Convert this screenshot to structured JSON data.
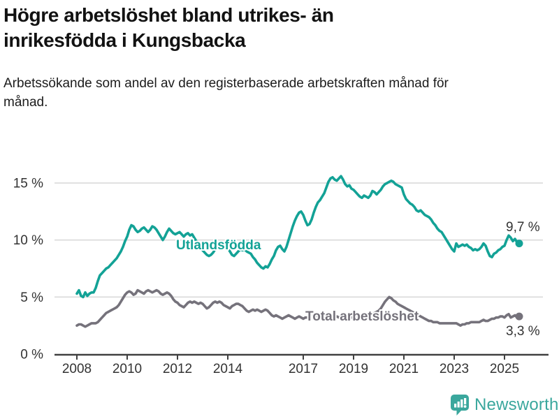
{
  "header": {
    "title": "Högre arbetslöshet bland utrikes- än inrikesfödda i Kungsbacka",
    "subtitle": "Arbetssökande som andel av den registerbaserade arbetskraften månad för månad."
  },
  "chart_data": {
    "type": "line",
    "title": "Högre arbetslöshet bland utrikes- än inrikesfödda i Kungsbacka",
    "x_unit": "month",
    "x_start": "2008-01",
    "x_end": "2025-08",
    "x_tick_years": [
      2008,
      2010,
      2012,
      2014,
      2017,
      2019,
      2021,
      2023,
      2025
    ],
    "x_tick_labels": [
      "2008",
      "2010",
      "2012",
      "2014",
      "2017",
      "2019",
      "2021",
      "2023",
      "2025"
    ],
    "y_ticks": [
      0,
      5,
      10,
      15
    ],
    "y_tick_labels": [
      "0 %",
      "5 %",
      "10 %",
      "15 %"
    ],
    "ylim": [
      0,
      16.5
    ],
    "grid": "horizontal",
    "colors": {
      "grid": "#d4d4d4",
      "axis": "#404040",
      "tick_text": "#333333"
    },
    "series": [
      {
        "name": "Utlandsfödda",
        "color": "#13a296",
        "end_value": 9.7,
        "end_label": "9,7 %",
        "values": [
          5.3,
          5.6,
          5.1,
          5.0,
          5.4,
          5.1,
          5.3,
          5.4,
          5.4,
          5.8,
          6.4,
          6.9,
          7.1,
          7.3,
          7.5,
          7.6,
          7.8,
          8.0,
          8.2,
          8.4,
          8.7,
          9.0,
          9.4,
          9.9,
          10.3,
          10.9,
          11.3,
          11.2,
          10.9,
          10.7,
          10.8,
          11.0,
          11.1,
          10.9,
          10.7,
          10.9,
          11.2,
          11.1,
          10.9,
          10.6,
          10.3,
          10.0,
          10.3,
          10.7,
          11.0,
          10.8,
          10.6,
          10.5,
          10.6,
          10.7,
          10.5,
          10.3,
          10.5,
          10.6,
          10.4,
          10.5,
          10.2,
          9.9,
          9.6,
          9.3,
          9.1,
          8.9,
          8.7,
          8.6,
          8.7,
          8.9,
          9.2,
          9.4,
          9.5,
          9.4,
          9.5,
          9.4,
          9.3,
          9.0,
          8.7,
          8.6,
          8.8,
          9.0,
          9.2,
          9.1,
          9.2,
          9.0,
          8.9,
          8.8,
          8.5,
          8.3,
          8.0,
          7.8,
          7.6,
          7.5,
          7.7,
          7.6,
          7.9,
          8.3,
          8.6,
          9.1,
          9.4,
          9.5,
          9.2,
          9.0,
          9.4,
          10.0,
          10.6,
          11.2,
          11.7,
          12.1,
          12.4,
          12.5,
          12.2,
          11.7,
          11.3,
          11.4,
          11.8,
          12.4,
          12.9,
          13.3,
          13.5,
          13.8,
          14.1,
          14.6,
          15.1,
          15.4,
          15.5,
          15.3,
          15.2,
          15.4,
          15.6,
          15.3,
          14.9,
          14.7,
          14.8,
          14.5,
          14.4,
          14.2,
          14.0,
          13.8,
          13.7,
          13.9,
          13.8,
          13.7,
          13.9,
          14.3,
          14.2,
          14.0,
          14.2,
          14.4,
          14.7,
          14.9,
          15.0,
          15.1,
          15.2,
          15.1,
          14.9,
          14.8,
          14.7,
          14.6,
          14.0,
          13.6,
          13.4,
          13.2,
          13.1,
          12.9,
          12.6,
          12.5,
          12.6,
          12.4,
          12.2,
          12.1,
          12.0,
          11.8,
          11.5,
          11.3,
          11.0,
          10.8,
          10.7,
          10.4,
          10.1,
          9.8,
          9.5,
          9.2,
          9.0,
          9.7,
          9.4,
          9.5,
          9.6,
          9.5,
          9.6,
          9.4,
          9.3,
          9.1,
          9.2,
          9.1,
          9.2,
          9.4,
          9.7,
          9.5,
          9.0,
          8.6,
          8.5,
          8.8,
          8.9,
          9.1,
          9.2,
          9.4,
          9.5,
          10.0,
          10.4,
          10.2,
          9.9,
          10.1,
          9.8,
          9.7
        ]
      },
      {
        "name": "Total arbetslöshet",
        "color": "#75727b",
        "end_value": 3.3,
        "end_label": "3,3 %",
        "values": [
          2.5,
          2.6,
          2.6,
          2.5,
          2.4,
          2.5,
          2.6,
          2.7,
          2.7,
          2.7,
          2.8,
          3.0,
          3.2,
          3.4,
          3.6,
          3.7,
          3.8,
          3.9,
          4.0,
          4.1,
          4.3,
          4.6,
          4.9,
          5.2,
          5.4,
          5.5,
          5.4,
          5.2,
          5.3,
          5.6,
          5.5,
          5.4,
          5.3,
          5.5,
          5.6,
          5.5,
          5.4,
          5.5,
          5.6,
          5.5,
          5.3,
          5.2,
          5.3,
          5.4,
          5.3,
          5.1,
          4.8,
          4.6,
          4.5,
          4.3,
          4.2,
          4.1,
          4.3,
          4.5,
          4.6,
          4.5,
          4.6,
          4.5,
          4.4,
          4.5,
          4.4,
          4.2,
          4.0,
          4.1,
          4.3,
          4.5,
          4.6,
          4.5,
          4.6,
          4.5,
          4.3,
          4.2,
          4.1,
          4.0,
          4.2,
          4.3,
          4.4,
          4.4,
          4.3,
          4.2,
          4.0,
          3.8,
          3.7,
          3.8,
          3.9,
          3.8,
          3.9,
          3.8,
          3.7,
          3.8,
          3.9,
          3.8,
          3.6,
          3.4,
          3.3,
          3.4,
          3.3,
          3.2,
          3.1,
          3.2,
          3.3,
          3.4,
          3.3,
          3.2,
          3.1,
          3.2,
          3.3,
          3.2,
          3.1,
          3.2,
          3.2,
          3.3,
          3.3,
          3.4,
          3.4,
          3.3,
          3.3,
          3.4,
          3.4,
          3.3,
          3.3,
          3.2,
          3.2,
          3.3,
          3.3,
          3.2,
          3.3,
          3.2,
          3.2,
          3.3,
          3.3,
          3.2,
          3.2,
          3.3,
          3.3,
          3.2,
          3.3,
          3.3,
          3.4,
          3.4,
          3.5,
          3.5,
          3.6,
          3.7,
          3.8,
          4.0,
          4.3,
          4.6,
          4.8,
          5.0,
          4.9,
          4.7,
          4.6,
          4.4,
          4.3,
          4.2,
          4.1,
          4.0,
          3.9,
          3.8,
          3.7,
          3.6,
          3.5,
          3.4,
          3.3,
          3.2,
          3.1,
          3.0,
          2.9,
          2.9,
          2.8,
          2.8,
          2.8,
          2.7,
          2.7,
          2.7,
          2.7,
          2.7,
          2.7,
          2.7,
          2.7,
          2.7,
          2.6,
          2.5,
          2.6,
          2.6,
          2.7,
          2.7,
          2.8,
          2.8,
          2.8,
          2.8,
          2.8,
          2.9,
          3.0,
          2.9,
          2.9,
          3.0,
          3.1,
          3.1,
          3.2,
          3.2,
          3.3,
          3.3,
          3.2,
          3.4,
          3.5,
          3.2,
          3.3,
          3.4,
          3.2,
          3.3
        ]
      }
    ]
  },
  "branding": {
    "logo_text": "Newsworthy",
    "logo_color": "#3aa79d",
    "logo_icon": "bar-chart-speech-bubble-icon"
  }
}
